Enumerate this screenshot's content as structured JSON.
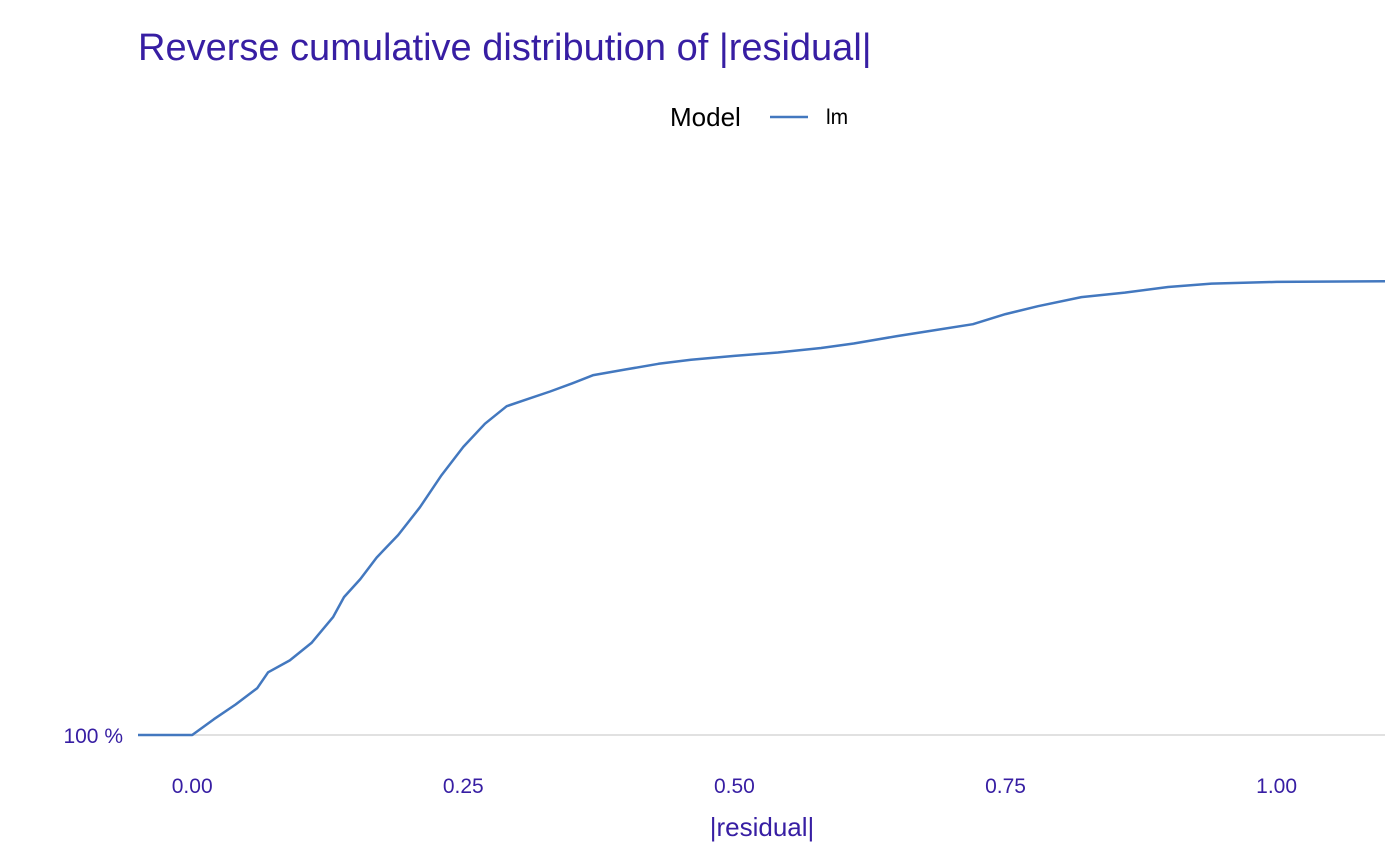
{
  "chart_data": {
    "type": "line",
    "title": "Reverse cumulative distribution of |residual|",
    "xlabel": "|residual|",
    "ylabel": "",
    "legend": {
      "title": "Model",
      "position": "top"
    },
    "x_ticks": [
      "0.00",
      "0.25",
      "0.50",
      "0.75",
      "1.00"
    ],
    "y_ticks": [
      "100 %"
    ],
    "xlim": [
      -0.05,
      1.1
    ],
    "ylim": [
      0,
      100
    ],
    "grid": "horizontal baseline only",
    "series": [
      {
        "name": "lm",
        "color": "#4378bf",
        "x": [
          -0.05,
          0.0,
          0.02,
          0.04,
          0.06,
          0.07,
          0.09,
          0.11,
          0.13,
          0.14,
          0.155,
          0.17,
          0.19,
          0.21,
          0.23,
          0.25,
          0.27,
          0.29,
          0.31,
          0.33,
          0.35,
          0.37,
          0.4,
          0.43,
          0.46,
          0.5,
          0.54,
          0.58,
          0.61,
          0.65,
          0.68,
          0.72,
          0.75,
          0.78,
          0.82,
          0.86,
          0.9,
          0.94,
          1.0,
          1.1
        ],
        "values": [
          100,
          100,
          97.2,
          94.6,
          91.7,
          88.9,
          86.8,
          83.7,
          79.1,
          75.6,
          72.4,
          68.6,
          64.6,
          59.7,
          54.0,
          49.0,
          44.9,
          41.8,
          40.5,
          39.2,
          37.8,
          36.3,
          35.3,
          34.3,
          33.6,
          32.9,
          32.3,
          31.5,
          30.7,
          29.4,
          28.5,
          27.3,
          25.5,
          24.1,
          22.5,
          21.7,
          20.7,
          20.1,
          19.8,
          19.7
        ]
      }
    ]
  }
}
